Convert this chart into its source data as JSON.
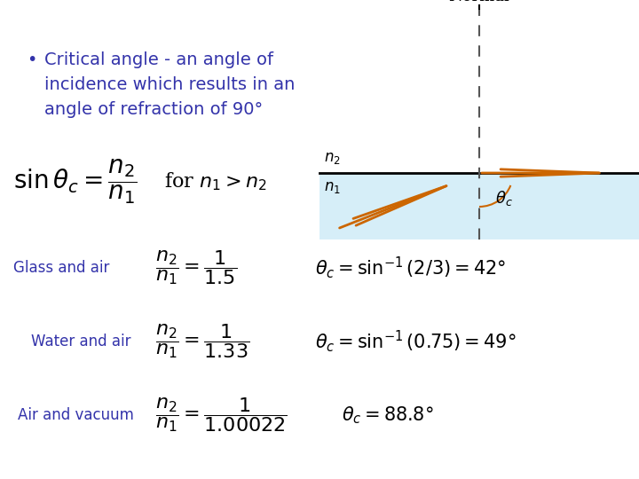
{
  "bg_color": "#ffffff",
  "blue_color": "#3333aa",
  "orange_color": "#cc6600",
  "light_blue_fill": "#d6eef8",
  "dark_gray": "#333333",
  "bullet_line1": "Critical angle - an angle of",
  "bullet_line2": "incidence which results in an",
  "bullet_line3": "angle of refraction of 90°",
  "glass_label": "Glass and air",
  "water_label": "Water and air",
  "air_label": "Air and vacuum",
  "normal_label": "Normal",
  "fig_width": 7.2,
  "fig_height": 5.4,
  "dpi": 100
}
